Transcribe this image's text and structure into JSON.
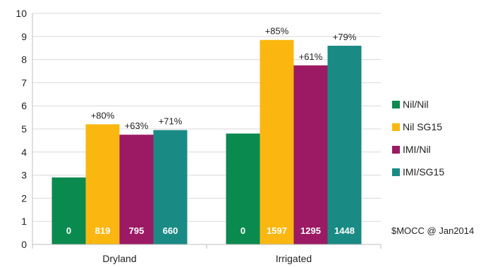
{
  "chart_data": {
    "type": "bar",
    "title": "",
    "xlabel": "",
    "ylabel": "",
    "ylim": [
      0,
      10
    ],
    "yticks": [
      "0",
      "1",
      "2",
      "3",
      "4",
      "5",
      "6",
      "7",
      "8",
      "9",
      "10"
    ],
    "categories": [
      "Dryland",
      "Irrigated"
    ],
    "series": [
      {
        "name": "Nil/Nil",
        "color": "#0a8a4f",
        "values": [
          2.9,
          4.8
        ],
        "pct_labels": [
          "",
          ""
        ],
        "inbar_labels": [
          "0",
          "0"
        ]
      },
      {
        "name": "Nil SG15",
        "color": "#fbb710",
        "values": [
          5.2,
          8.85
        ],
        "pct_labels": [
          "+80%",
          "+85%"
        ],
        "inbar_labels": [
          "819",
          "1597"
        ]
      },
      {
        "name": "IMI/Nil",
        "color": "#9c1a63",
        "values": [
          4.75,
          7.75
        ],
        "pct_labels": [
          "+63%",
          "+61%"
        ],
        "inbar_labels": [
          "795",
          "1295"
        ]
      },
      {
        "name": "IMI/SG15",
        "color": "#1a8a84",
        "values": [
          4.95,
          8.6
        ],
        "pct_labels": [
          "+71%",
          "+79%"
        ],
        "inbar_labels": [
          "660",
          "1448"
        ]
      }
    ],
    "annotation": "$MOCC @ Jan2014",
    "grid": true,
    "legend_position": "right"
  }
}
